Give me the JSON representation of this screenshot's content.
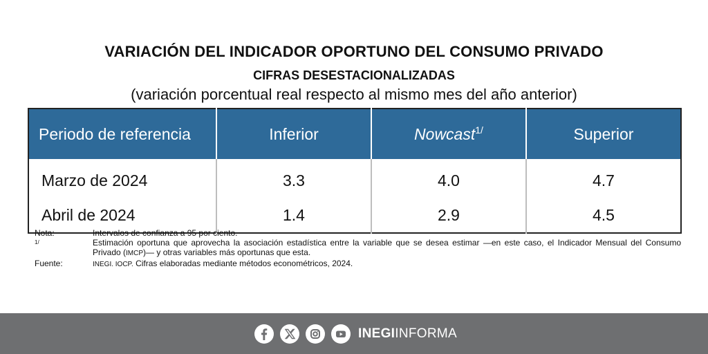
{
  "header": {
    "title": "VARIACIÓN DEL INDICADOR OPORTUNO DEL CONSUMO PRIVADO",
    "subtitle": "CIFRAS DESESTACIONALIZADAS",
    "units": "(variación porcentual real respecto al mismo mes del año anterior)"
  },
  "table": {
    "columns": [
      "Periodo de referencia",
      "Inferior",
      "Nowcast",
      "Superior"
    ],
    "nowcast_sup": "1/",
    "rows": [
      [
        "Marzo de 2024",
        "3.3",
        "4.0",
        "4.7"
      ],
      [
        "Abril de 2024",
        "1.4",
        "2.9",
        "4.5"
      ]
    ]
  },
  "notes": {
    "nota_key": "Nota:",
    "nota_text": "Intervalos de confianza a 95 por ciento.",
    "fn_key": "1/",
    "fn_text_1": "Estimación oportuna que aprovecha la asociación estadística entre la variable que se desea estimar —en este caso, el Indicador Mensual del Consumo Privado (",
    "fn_abbrev": "IMCP",
    "fn_text_2": ")— y otras variables más oportunas que esta.",
    "fuente_key": "Fuente:",
    "fuente_abbrev": "INEGI. IOCP.",
    "fuente_text": " Cifras elaboradas mediante métodos econométricos, 2024."
  },
  "footer": {
    "icons": [
      "facebook-icon",
      "x-icon",
      "instagram-icon",
      "youtube-icon"
    ],
    "brand_bold": "INEGI",
    "brand_light": "INFORMA",
    "colors": {
      "bar": "#6e6f71",
      "header": "#2e6a99"
    }
  }
}
